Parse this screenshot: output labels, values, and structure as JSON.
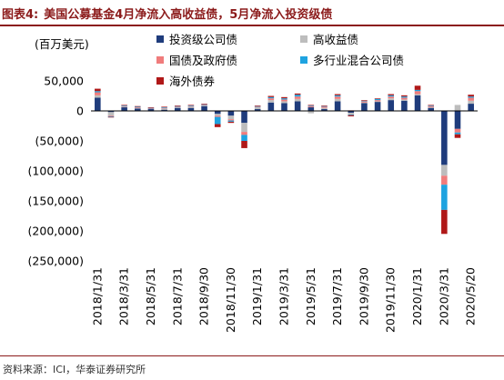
{
  "figure": {
    "label": "图表4:",
    "title": "美国公募基金4月净流入高收益债，5月净流入投资级债"
  },
  "unit_label": "(百万美元)",
  "source": "资料来源：ICI，华泰证券研究所",
  "chart_data": {
    "type": "bar",
    "stacked": true,
    "ylim": [
      -250000,
      50000
    ],
    "y_ticks": [
      50000,
      0,
      -50000,
      -100000,
      -150000,
      -200000,
      -250000
    ],
    "y_tick_labels": [
      "50,000",
      "0",
      "(50,000)",
      "(100,000)",
      "(150,000)",
      "(200,000)",
      "(250,000)"
    ],
    "x_tick_labels": [
      "2018/1/31",
      "2018/3/31",
      "2018/5/31",
      "2018/7/31",
      "2018/9/30",
      "2018/11/30",
      "2019/1/31",
      "2019/3/31",
      "2019/5/31",
      "2019/7/31",
      "2019/9/30",
      "2019/11/30",
      "2020/1/31",
      "2020/3/31",
      "2020/5/20"
    ],
    "categories": [
      "2018/1/31",
      "2018/2/28",
      "2018/3/31",
      "2018/4/30",
      "2018/5/31",
      "2018/6/30",
      "2018/7/31",
      "2018/8/31",
      "2018/9/30",
      "2018/10/31",
      "2018/11/30",
      "2018/12/31",
      "2019/1/31",
      "2019/2/28",
      "2019/3/31",
      "2019/4/30",
      "2019/5/31",
      "2019/6/30",
      "2019/7/31",
      "2019/8/31",
      "2019/9/30",
      "2019/10/31",
      "2019/11/30",
      "2019/12/31",
      "2020/1/31",
      "2020/2/29",
      "2020/3/31",
      "2020/4/30",
      "2020/5/20"
    ],
    "series": [
      {
        "name": "投资级公司债",
        "color": "#1f3c7c",
        "values": [
          22000,
          -2000,
          6000,
          4000,
          3000,
          2000,
          5000,
          5000,
          8000,
          -5000,
          -8000,
          -20000,
          3000,
          14000,
          13000,
          16000,
          6000,
          3000,
          16000,
          -3000,
          13000,
          15000,
          18000,
          17000,
          26000,
          5000,
          -90000,
          -30000,
          12000
        ]
      },
      {
        "name": "高收益债",
        "color": "#bdbdbd",
        "values": [
          4000,
          -6000,
          1000,
          1000,
          -1000,
          2000,
          1000,
          2000,
          1000,
          -3000,
          -6000,
          -15000,
          3000,
          4000,
          3000,
          4000,
          -4000,
          2000,
          4000,
          -3000,
          1000,
          1000,
          3000,
          2000,
          2000,
          1000,
          -18000,
          10000,
          5000
        ]
      },
      {
        "name": "国债及政府债",
        "color": "#f07c7c",
        "values": [
          5000,
          -1000,
          1000,
          1000,
          1000,
          1000,
          1000,
          1000,
          1000,
          -2000,
          -2000,
          -5000,
          1000,
          3000,
          3000,
          4000,
          2000,
          2000,
          4000,
          1000,
          2000,
          2000,
          3000,
          3000,
          5000,
          2000,
          -15000,
          -6000,
          5000
        ]
      },
      {
        "name": "多行业混合公司债",
        "color": "#1ea3e0",
        "values": [
          2000,
          -1000,
          1000,
          1000,
          1000,
          1000,
          1000,
          1000,
          1000,
          -12000,
          -2000,
          -10000,
          1000,
          2000,
          2000,
          3000,
          1000,
          1000,
          2000,
          -1000,
          1000,
          2000,
          2000,
          2000,
          2000,
          1000,
          -42000,
          -3000,
          2000
        ]
      },
      {
        "name": "海外债券",
        "color": "#b01818",
        "values": [
          4000,
          -1000,
          1000,
          1000,
          1000,
          1000,
          1000,
          1000,
          1000,
          -5000,
          -2000,
          -12000,
          1000,
          2000,
          2000,
          2000,
          1000,
          1000,
          2000,
          -2000,
          1000,
          1000,
          2000,
          2000,
          7000,
          1000,
          -40000,
          -6000,
          3000
        ]
      }
    ]
  }
}
